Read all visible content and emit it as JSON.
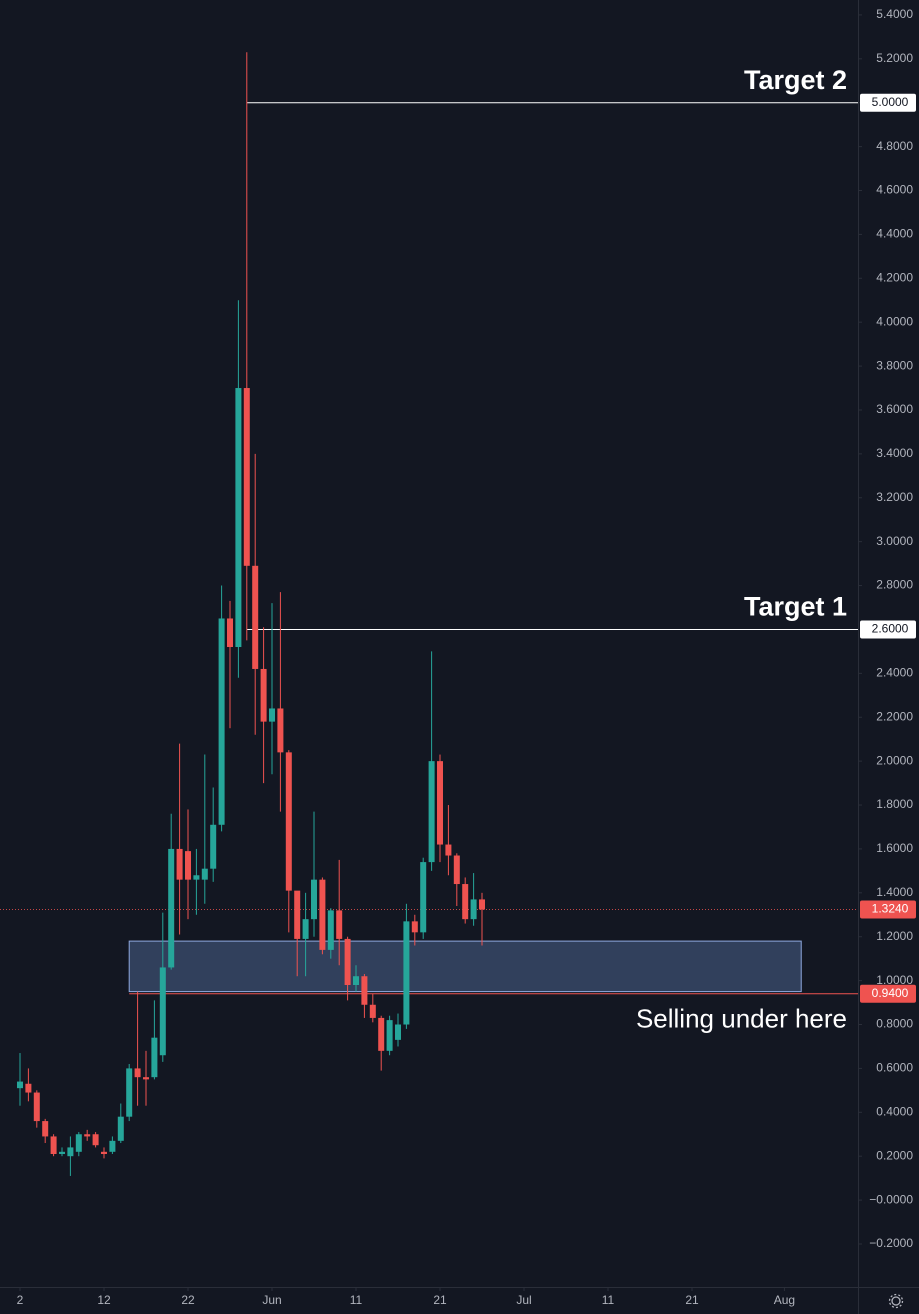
{
  "chart_data": {
    "type": "candlestick",
    "up_color": "#26a69a",
    "down_color": "#ef5350",
    "x": [
      2,
      3,
      4,
      5,
      6,
      7,
      8,
      9,
      10,
      11,
      12,
      13,
      14,
      15,
      16,
      17,
      18,
      19,
      20,
      21,
      22,
      23,
      24,
      25,
      26,
      27,
      28,
      29,
      30,
      31,
      32,
      33,
      34,
      35,
      36,
      37,
      38,
      39,
      40,
      41,
      42,
      43,
      44,
      45,
      46,
      47,
      48,
      49,
      50,
      51,
      52,
      53,
      54,
      55,
      56,
      57
    ],
    "open": [
      0.51,
      0.53,
      0.49,
      0.36,
      0.29,
      0.21,
      0.2,
      0.22,
      0.3,
      0.3,
      0.22,
      0.22,
      0.27,
      0.38,
      0.6,
      0.56,
      0.56,
      0.66,
      1.06,
      1.6,
      1.59,
      1.46,
      1.46,
      1.51,
      1.71,
      2.65,
      2.52,
      3.7,
      2.89,
      2.42,
      2.18,
      2.24,
      2.04,
      1.41,
      1.19,
      1.28,
      1.46,
      1.14,
      1.32,
      1.19,
      0.98,
      1.02,
      0.89,
      0.83,
      0.68,
      0.73,
      0.8,
      1.27,
      1.22,
      1.54,
      2.0,
      1.62,
      1.57,
      1.44,
      1.28,
      1.37
    ],
    "high": [
      0.67,
      0.6,
      0.5,
      0.37,
      0.3,
      0.24,
      0.29,
      0.31,
      0.32,
      0.31,
      0.24,
      0.29,
      0.44,
      0.62,
      0.95,
      0.68,
      0.91,
      1.31,
      1.76,
      2.08,
      1.78,
      1.6,
      2.03,
      1.88,
      2.8,
      2.73,
      4.1,
      5.23,
      3.4,
      2.61,
      2.72,
      2.77,
      2.05,
      1.4,
      1.4,
      1.77,
      1.47,
      1.33,
      1.55,
      1.2,
      1.07,
      1.03,
      0.94,
      0.84,
      0.84,
      0.85,
      1.35,
      1.3,
      1.56,
      2.5,
      2.03,
      1.8,
      1.58,
      1.47,
      1.49,
      1.4
    ],
    "low": [
      0.43,
      0.45,
      0.33,
      0.26,
      0.2,
      0.2,
      0.11,
      0.2,
      0.27,
      0.24,
      0.19,
      0.21,
      0.26,
      0.36,
      0.43,
      0.43,
      0.55,
      0.63,
      1.05,
      1.21,
      1.28,
      1.3,
      1.35,
      1.45,
      1.68,
      2.15,
      2.38,
      2.55,
      2.12,
      1.9,
      1.94,
      1.77,
      1.22,
      1.02,
      1.02,
      1.2,
      1.12,
      1.1,
      1.07,
      0.91,
      0.95,
      0.83,
      0.81,
      0.59,
      0.66,
      0.7,
      0.78,
      1.16,
      1.19,
      1.5,
      1.54,
      1.48,
      1.34,
      1.26,
      1.25,
      1.16
    ],
    "close": [
      0.54,
      0.49,
      0.36,
      0.29,
      0.21,
      0.22,
      0.24,
      0.3,
      0.29,
      0.25,
      0.21,
      0.27,
      0.38,
      0.6,
      0.56,
      0.55,
      0.74,
      1.06,
      1.6,
      1.46,
      1.46,
      1.48,
      1.51,
      1.71,
      2.65,
      2.52,
      3.7,
      2.89,
      2.42,
      2.18,
      2.24,
      2.04,
      1.41,
      1.19,
      1.28,
      1.46,
      1.14,
      1.32,
      1.19,
      0.98,
      1.02,
      0.89,
      0.83,
      0.68,
      0.82,
      0.8,
      1.27,
      1.22,
      1.54,
      2.0,
      1.62,
      1.57,
      1.44,
      1.28,
      1.37,
      1.324
    ],
    "xlim": [
      -0.38,
      101.76
    ],
    "ylim": [
      -0.396,
      5.468
    ],
    "xticks": [
      2,
      12,
      22,
      {
        "value": 32,
        "label": "Jun"
      },
      {
        "value": 42,
        "label": "11"
      },
      {
        "value": 52,
        "label": "21"
      },
      {
        "value": 62,
        "label": "Jul"
      },
      {
        "value": 72,
        "label": "11"
      },
      {
        "value": 82,
        "label": "21"
      },
      {
        "value": 93,
        "label": "Aug"
      }
    ],
    "yticks": [
      {
        "value": 5.4,
        "label": "5.4000"
      },
      {
        "value": 5.2,
        "label": "5.2000"
      },
      {
        "value": 5.0,
        "label": "5.0000"
      },
      {
        "value": 4.8,
        "label": "4.8000"
      },
      {
        "value": 4.6,
        "label": "4.6000"
      },
      {
        "value": 4.4,
        "label": "4.4000"
      },
      {
        "value": 4.2,
        "label": "4.2000"
      },
      {
        "value": 4.0,
        "label": "4.0000"
      },
      {
        "value": 3.8,
        "label": "3.8000"
      },
      {
        "value": 3.6,
        "label": "3.6000"
      },
      {
        "value": 3.4,
        "label": "3.4000"
      },
      {
        "value": 3.2,
        "label": "3.2000"
      },
      {
        "value": 3.0,
        "label": "3.0000"
      },
      {
        "value": 2.8,
        "label": "2.8000"
      },
      {
        "value": 2.4,
        "label": "2.4000"
      },
      {
        "value": 2.2,
        "label": "2.2000"
      },
      {
        "value": 2.0,
        "label": "2.0000"
      },
      {
        "value": 1.8,
        "label": "1.8000"
      },
      {
        "value": 1.6,
        "label": "1.6000"
      },
      {
        "value": 1.4,
        "label": "1.4000"
      },
      {
        "value": 1.2,
        "label": "1.2000"
      },
      {
        "value": 1.0,
        "label": "1.0000"
      },
      {
        "value": 0.8,
        "label": "0.8000"
      },
      {
        "value": 0.6,
        "label": "0.6000"
      },
      {
        "value": 0.4,
        "label": "0.4000"
      },
      {
        "value": 0.2,
        "label": "0.2000"
      },
      {
        "value": 0,
        "label": "−0.0000"
      },
      {
        "value": -0.2,
        "label": "−0.2000"
      }
    ],
    "targets": [
      {
        "text": "Target 2",
        "value": 5.0,
        "label": "5.0000",
        "start_x": 29
      },
      {
        "text": "Target 1",
        "value": 2.6,
        "label": "2.6000",
        "start_x": 29
      }
    ],
    "zone": {
      "x": [
        15,
        95
      ],
      "y": [
        0.95,
        1.18
      ]
    },
    "support": {
      "text": "Selling under here",
      "value": 0.94,
      "label": "0.9400",
      "start_x": 15
    },
    "last_price": {
      "value": 1.324,
      "label": "1.3240"
    }
  }
}
